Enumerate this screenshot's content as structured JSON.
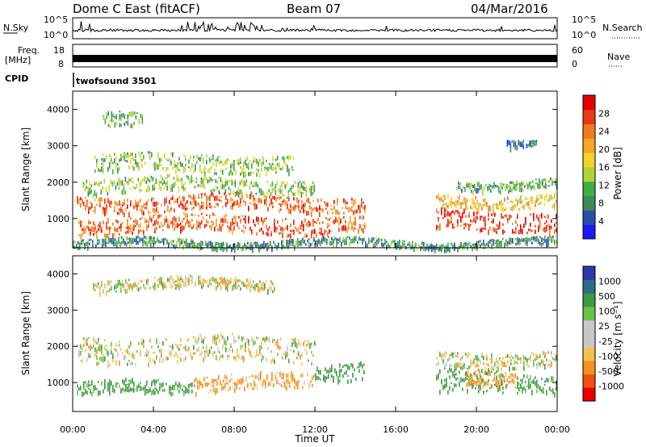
{
  "header": {
    "station": "Dome C East (fitACF)",
    "beam": "Beam 07",
    "date": "04/Mar/2016"
  },
  "strip_panels": {
    "nsky_label": "N.Sky",
    "nsearch_label": "N.Search",
    "nsky_ticks": [
      "10^5",
      "10^0"
    ],
    "nsearch_ticks": [
      "10^5",
      "10^0"
    ],
    "freq_label_1": "Freq.",
    "freq_label_2": "[MHz]",
    "freq_ticks": [
      "18",
      "8"
    ],
    "nave_label": "Nave",
    "nave_ticks": [
      "60",
      "0"
    ],
    "cpid_label": "CPID",
    "cpid_value": "twofsound 3501"
  },
  "colors": {
    "power_scale": [
      "#1a1aff",
      "#2a4da8",
      "#3c8c5a",
      "#3fae47",
      "#b2d235",
      "#f0d22a",
      "#f5a623",
      "#f07a1a",
      "#e83a14",
      "#e60000"
    ],
    "velocity_scale": [
      "#e60000",
      "#ee5010",
      "#f29020",
      "#f4c050",
      "#c8c8c8",
      "#c8c8c8",
      "#6bc04b",
      "#3f9a45",
      "#2c6e84",
      "#2a3aa8"
    ]
  },
  "chart_data": [
    {
      "type": "heatmap",
      "name": "power",
      "ylabel": "Slant Range [km]",
      "xlabel": "",
      "ylim": [
        200,
        4500
      ],
      "xlim": [
        0,
        24
      ],
      "y_ticks": [
        "1000",
        "2000",
        "3000",
        "4000"
      ],
      "colorbar_label": "Power [dB]",
      "colorbar_ticks": [
        "4",
        "8",
        "12",
        "16",
        "20",
        "24",
        "28"
      ],
      "colorbar_range": [
        0,
        30
      ],
      "bands": [
        {
          "x": [
            0.2,
            14.5
          ],
          "y": [
            1250,
            1650
          ],
          "v": 24
        },
        {
          "x": [
            0.2,
            14.5
          ],
          "y": [
            650,
            1100
          ],
          "v": 24
        },
        {
          "x": [
            0.5,
            12.0
          ],
          "y": [
            1750,
            2150
          ],
          "v": 12
        },
        {
          "x": [
            1.0,
            11.0
          ],
          "y": [
            2300,
            2800
          ],
          "v": 12
        },
        {
          "x": [
            1.5,
            3.5
          ],
          "y": [
            3500,
            3900
          ],
          "v": 10
        },
        {
          "x": [
            18.0,
            24.0
          ],
          "y": [
            700,
            1250
          ],
          "v": 26
        },
        {
          "x": [
            18.0,
            24.0
          ],
          "y": [
            1350,
            1700
          ],
          "v": 18
        },
        {
          "x": [
            19.0,
            24.0
          ],
          "y": [
            1850,
            2100
          ],
          "v": 10
        },
        {
          "x": [
            21.5,
            23.0
          ],
          "y": [
            3050,
            3250
          ],
          "v": 6
        },
        {
          "x": [
            0.0,
            24.0
          ],
          "y": [
            250,
            450
          ],
          "v": 8
        }
      ]
    },
    {
      "type": "heatmap",
      "name": "velocity",
      "ylabel": "Slant Range [km]",
      "xlabel": "Time UT",
      "ylim": [
        200,
        4500
      ],
      "xlim": [
        0,
        24
      ],
      "x_ticks": [
        "00:00",
        "04:00",
        "08:00",
        "12:00",
        "16:00",
        "20:00",
        "00:00"
      ],
      "y_ticks": [
        "1000",
        "2000",
        "3000",
        "4000"
      ],
      "colorbar_label": "Velocity [m s⁻¹]",
      "colorbar_ticks": [
        "-1000",
        "-500",
        "-100",
        "-25",
        "25",
        "100",
        "500",
        "1000"
      ],
      "bands": [
        {
          "x": [
            0.2,
            12.0
          ],
          "y": [
            1600,
            2300
          ],
          "v": 0
        },
        {
          "x": [
            12.0,
            14.5
          ],
          "y": [
            1150,
            1650
          ],
          "v": 250
        },
        {
          "x": [
            6.0,
            12.0
          ],
          "y": [
            800,
            1250
          ],
          "v": -150
        },
        {
          "x": [
            0.2,
            6.0
          ],
          "y": [
            700,
            1050
          ],
          "v": 200
        },
        {
          "x": [
            18.0,
            21.5
          ],
          "y": [
            700,
            1350
          ],
          "v": 250
        },
        {
          "x": [
            19.5,
            22.0
          ],
          "y": [
            900,
            1300
          ],
          "v": -200
        },
        {
          "x": [
            18.0,
            24.0
          ],
          "y": [
            1500,
            1900
          ],
          "v": 0
        },
        {
          "x": [
            22.0,
            24.0
          ],
          "y": [
            800,
            1300
          ],
          "v": 200
        },
        {
          "x": [
            1.0,
            10.0
          ],
          "y": [
            3600,
            3900
          ],
          "v": 0
        }
      ]
    }
  ]
}
